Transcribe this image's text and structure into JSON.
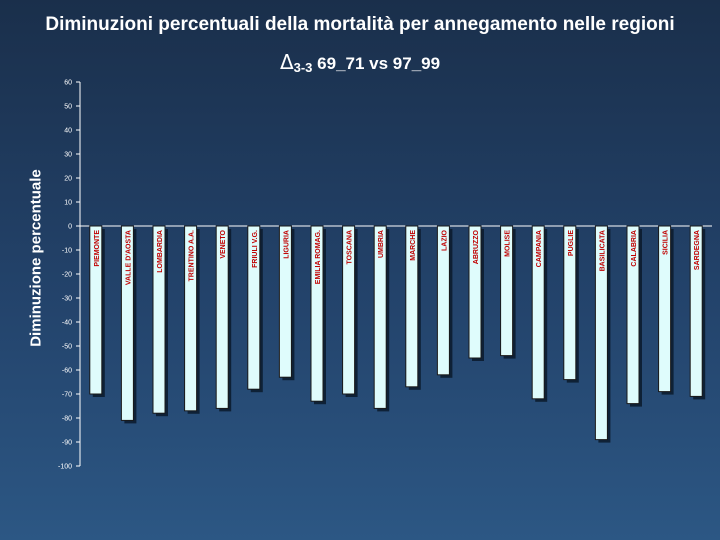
{
  "title": "Diminuzioni percentuali della mortalità per annegamento nelle regioni",
  "subtitle": {
    "delta_symbol": "Δ",
    "delta_subscript": "3-3",
    "text": "69_71 vs 97_99"
  },
  "chart_data": {
    "type": "bar",
    "title": "Diminuzioni percentuali della mortalità per annegamento nelle regioni",
    "xlabel": "",
    "ylabel": "Diminuzione percentuale",
    "ylim": [
      -100,
      60
    ],
    "yticks": [
      60,
      50,
      40,
      30,
      20,
      10,
      0,
      -10,
      -20,
      -30,
      -40,
      -50,
      -60,
      -70,
      -80,
      -90,
      -100
    ],
    "grid": false,
    "categories": [
      "PIEMONTE",
      "VALLE D'AOSTA",
      "LOMBARDIA",
      "TRENTINO A.A.",
      "VENETO",
      "FRIULI V.G.",
      "LIGURIA",
      "EMILIA ROMAG.",
      "TOSCANA",
      "UMBRIA",
      "MARCHE",
      "LAZIO",
      "ABRUZZO",
      "MOLISE",
      "CAMPANIA",
      "PUGLIE",
      "BASILICATA",
      "CALABRIA",
      "SICILIA",
      "SARDEGNA"
    ],
    "values": [
      -70,
      -81,
      -78,
      -77,
      -76,
      -68,
      -63,
      -73,
      -70,
      -76,
      -67,
      -62,
      -55,
      -54,
      -72,
      -64,
      -89,
      -74,
      -69,
      -71
    ],
    "colors": {
      "bar_fill": "#dffcfc",
      "bar_edge": "#1a1a1a",
      "bar_shadow": "#0b1a2c",
      "axis": "#ffffff",
      "text": "#ffffff",
      "category_label": "#c00000"
    }
  }
}
